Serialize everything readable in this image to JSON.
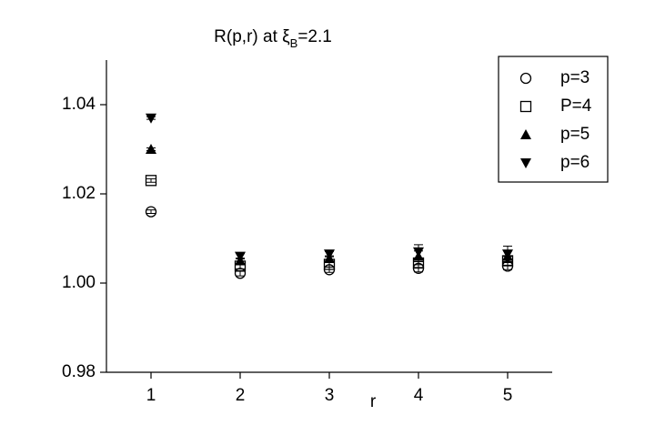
{
  "chart_data": {
    "type": "scatter",
    "title": {
      "text": "R(p,r) at ξ",
      "subscript": "B",
      "tail": "=2.1"
    },
    "x_label": "r",
    "xlim": [
      0.5,
      5.5
    ],
    "xticks": [
      1,
      2,
      3,
      4,
      5
    ],
    "ylim": [
      0.98,
      1.05
    ],
    "yticks": [
      0.98,
      {
        "value": 1,
        "label": "1.00"
      },
      1.02,
      1.04
    ],
    "legend": "upper right",
    "series": [
      {
        "name": "p=3",
        "marker": "circle",
        "color": "#000000",
        "x": [
          1,
          2,
          3,
          4,
          5
        ],
        "values": [
          1.016,
          1.0022,
          1.003,
          1.0033,
          1.0038
        ],
        "errors": [
          0.0004,
          0.0006,
          0.0006,
          0.0008,
          0.0008
        ]
      },
      {
        "name": "P=4",
        "marker": "square",
        "color": "#000000",
        "x": [
          1,
          2,
          3,
          4,
          5
        ],
        "values": [
          1.023,
          1.0038,
          1.0042,
          1.0045,
          1.005
        ],
        "errors": [
          0.0004,
          0.0006,
          0.0006,
          0.001,
          0.001
        ]
      },
      {
        "name": "p=5",
        "marker": "triangle-up",
        "color": "#000000",
        "x": [
          1,
          2,
          3,
          4,
          5
        ],
        "values": [
          1.03,
          1.005,
          1.0055,
          1.006,
          1.006
        ],
        "errors": [
          0.0003,
          0.0006,
          0.0006,
          0.0012,
          0.0012
        ]
      },
      {
        "name": "p=6",
        "marker": "triangle-down",
        "color": "#000000",
        "x": [
          1,
          2,
          3,
          4,
          5
        ],
        "values": [
          1.037,
          1.006,
          1.0065,
          1.007,
          1.0065
        ],
        "errors": [
          0.0003,
          0.0006,
          0.0006,
          0.0016,
          0.0018
        ]
      }
    ]
  }
}
